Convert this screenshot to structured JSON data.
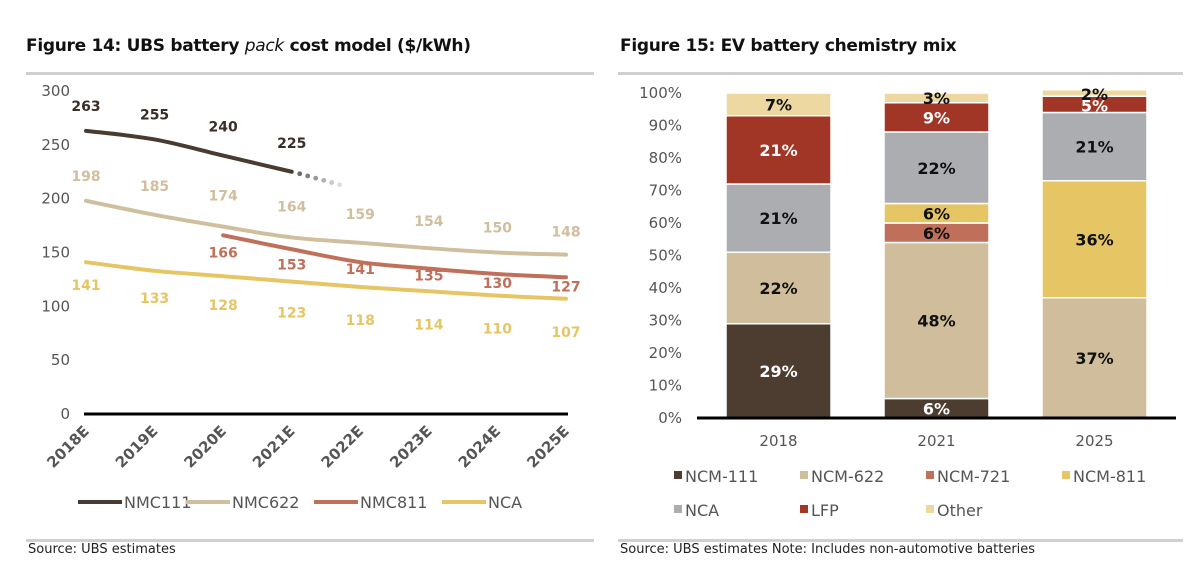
{
  "left": {
    "title_pre": "Figure 14: UBS battery ",
    "title_em": "pack",
    "title_post": " cost model ($/kWh)",
    "source": "Source:  UBS estimates"
  },
  "right": {
    "title": "Figure 15: EV battery chemistry mix",
    "source": "Source:  UBS estimates   Note: Includes non-automotive batteries"
  },
  "chart_data": [
    {
      "type": "line",
      "title": "Figure 14: UBS battery pack cost model ($/kWh)",
      "xlabel": "",
      "ylabel": "",
      "x": [
        "2018E",
        "2019E",
        "2020E",
        "2021E",
        "2022E",
        "2023E",
        "2024E",
        "2025E"
      ],
      "ylim": [
        0,
        300
      ],
      "yticks": [
        0,
        50,
        100,
        150,
        200,
        250,
        300
      ],
      "grid": false,
      "legend": "bottom",
      "series": [
        {
          "name": "NMC111",
          "color": "#4a3b30",
          "values": [
            263,
            255,
            240,
            225,
            null,
            null,
            null,
            null
          ],
          "dotted_extension": true
        },
        {
          "name": "NMC622",
          "color": "#d0bf9e",
          "values": [
            198,
            185,
            174,
            164,
            159,
            154,
            150,
            148
          ]
        },
        {
          "name": "NMC811",
          "color": "#c0705a",
          "values": [
            null,
            null,
            166,
            153,
            141,
            135,
            130,
            127
          ]
        },
        {
          "name": "NCA",
          "color": "#e6c565",
          "values": [
            141,
            133,
            128,
            123,
            118,
            114,
            110,
            107
          ]
        }
      ]
    },
    {
      "type": "bar",
      "stacked": true,
      "title": "Figure 15: EV battery chemistry mix",
      "xlabel": "",
      "ylabel": "",
      "categories": [
        "2018",
        "2021",
        "2025"
      ],
      "ylim": [
        0,
        100
      ],
      "yticks": [
        "0%",
        "10%",
        "20%",
        "30%",
        "40%",
        "50%",
        "60%",
        "70%",
        "80%",
        "90%",
        "100%"
      ],
      "grid": false,
      "legend": "bottom",
      "series": [
        {
          "name": "NCM-111",
          "color": "#4d3c30",
          "label_color": "#ffffff",
          "values": [
            29,
            6,
            0
          ]
        },
        {
          "name": "NCM-622",
          "color": "#cfbd9c",
          "label_color": "#111111",
          "values": [
            22,
            48,
            37
          ]
        },
        {
          "name": "NCM-721",
          "color": "#c0705a",
          "label_color": "#111111",
          "values": [
            0,
            6,
            0
          ]
        },
        {
          "name": "NCM-811",
          "color": "#e6c565",
          "label_color": "#111111",
          "values": [
            0,
            6,
            36
          ]
        },
        {
          "name": "NCA",
          "color": "#acadb0",
          "label_color": "#111111",
          "values": [
            21,
            22,
            21
          ]
        },
        {
          "name": "LFP",
          "color": "#a23626",
          "label_color": "#ffffff",
          "values": [
            21,
            9,
            5
          ]
        },
        {
          "name": "Other",
          "color": "#ecd8a0",
          "label_color": "#111111",
          "values": [
            7,
            3,
            2
          ]
        }
      ]
    }
  ]
}
